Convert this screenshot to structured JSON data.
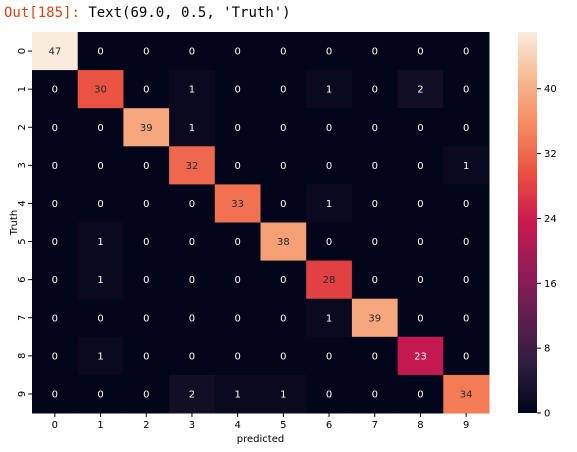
{
  "output": {
    "prompt_prefix": "Out[",
    "prompt_number": "185",
    "prompt_suffix": "]:",
    "text": "Text(69.0, 0.5, 'Truth')"
  },
  "chart_data": {
    "type": "heatmap",
    "xlabel": "predicted",
    "ylabel": "Truth",
    "x_ticks": [
      "0",
      "1",
      "2",
      "3",
      "4",
      "5",
      "6",
      "7",
      "8",
      "9"
    ],
    "y_ticks": [
      "0",
      "1",
      "2",
      "3",
      "4",
      "5",
      "6",
      "7",
      "8",
      "9"
    ],
    "matrix": [
      [
        47,
        0,
        0,
        0,
        0,
        0,
        0,
        0,
        0,
        0
      ],
      [
        0,
        30,
        0,
        1,
        0,
        0,
        1,
        0,
        2,
        0
      ],
      [
        0,
        0,
        39,
        1,
        0,
        0,
        0,
        0,
        0,
        0
      ],
      [
        0,
        0,
        0,
        32,
        0,
        0,
        0,
        0,
        0,
        1
      ],
      [
        0,
        0,
        0,
        0,
        33,
        0,
        1,
        0,
        0,
        0
      ],
      [
        0,
        1,
        0,
        0,
        0,
        38,
        0,
        0,
        0,
        0
      ],
      [
        0,
        1,
        0,
        0,
        0,
        0,
        28,
        0,
        0,
        0
      ],
      [
        0,
        0,
        0,
        0,
        0,
        0,
        1,
        39,
        0,
        0
      ],
      [
        0,
        1,
        0,
        0,
        0,
        0,
        0,
        0,
        23,
        0
      ],
      [
        0,
        0,
        0,
        2,
        1,
        1,
        0,
        0,
        0,
        34
      ]
    ],
    "vmin": 0,
    "vmax": 47,
    "colorbar_ticks": [
      0,
      8,
      16,
      24,
      32,
      40
    ],
    "colormap": "rocket",
    "colormap_stops": [
      "#03051a",
      "#2c1e3e",
      "#5f1f4f",
      "#941c57",
      "#c8184f",
      "#ea4e40",
      "#f5895d",
      "#f6b890",
      "#faebdd"
    ]
  }
}
